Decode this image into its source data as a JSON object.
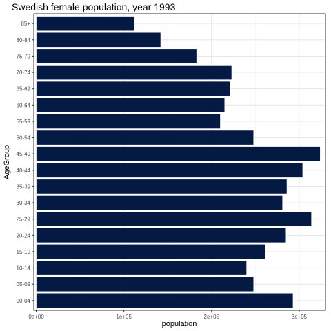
{
  "chart_data": {
    "type": "bar",
    "orientation": "horizontal",
    "title": "Swedish female population, year 1993",
    "xlabel": "population",
    "ylabel": "AgeGroup",
    "categories": [
      "00-04",
      "05-09",
      "10-14",
      "15-19",
      "20-24",
      "25-29",
      "30-34",
      "35-39",
      "40-44",
      "45-49",
      "50-54",
      "55-59",
      "60-64",
      "65-69",
      "70-74",
      "75-79",
      "80-84",
      "85+"
    ],
    "values": [
      293000,
      248000,
      240000,
      261000,
      285000,
      314000,
      281000,
      286000,
      304000,
      324000,
      248000,
      210000,
      215000,
      221000,
      223000,
      183000,
      142000,
      112000
    ],
    "xlim": [
      -2800,
      330000
    ],
    "xticks": [
      0,
      100000,
      200000,
      300000
    ],
    "xtick_labels": [
      "0e+00",
      "1e+05",
      "2e+05",
      "3e+05"
    ],
    "grid": true,
    "bar_color": "#041A43",
    "panel_border": true
  }
}
